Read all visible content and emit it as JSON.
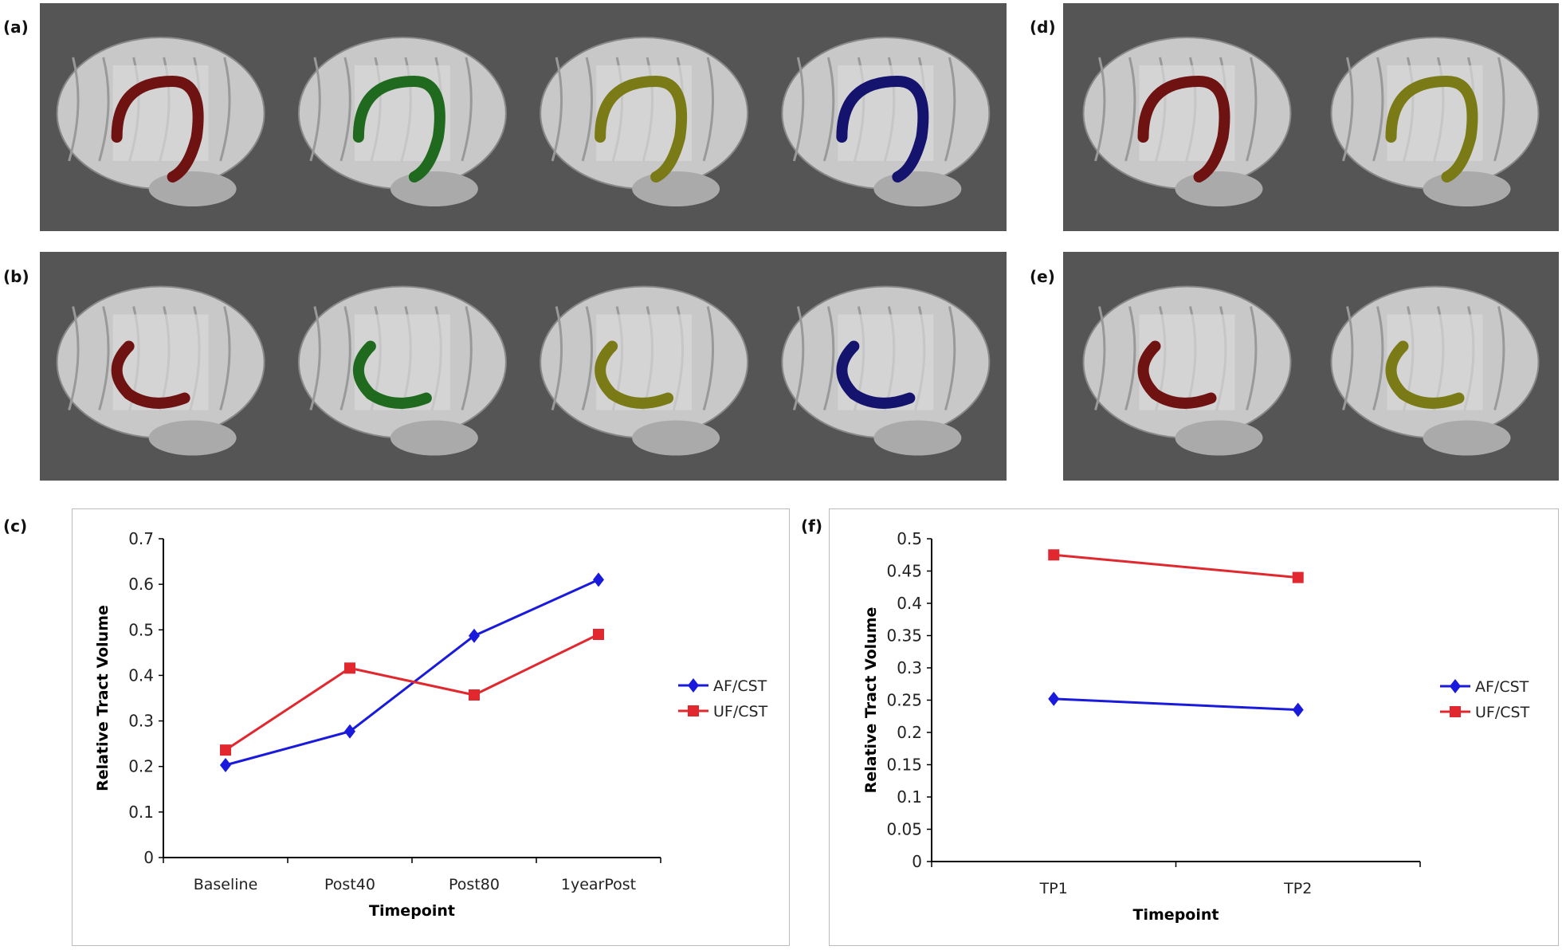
{
  "panel_labels": {
    "a": "(a)",
    "b": "(b)",
    "c": "(c)",
    "d": "(d)",
    "e": "(e)",
    "f": "(f)"
  },
  "colors": {
    "background": "#555555",
    "brain": "#c8c8c8",
    "red_tract": "#6e1212",
    "green_tract": "#1f6a1f",
    "olive_tract": "#7a7a16",
    "blue_tract": "#14146e",
    "af": "#1a1adc",
    "uf": "#e0282e"
  },
  "chart_data": [
    {
      "type": "line",
      "panel": "(c)",
      "categories": [
        "Baseline",
        "Post40",
        "Post80",
        "1yearPost"
      ],
      "series": [
        {
          "name": "AF/CST",
          "marker": "diamond",
          "color": "#1a1adc",
          "values": [
            0.203,
            0.277,
            0.487,
            0.61
          ]
        },
        {
          "name": "UF/CST",
          "marker": "square",
          "color": "#e0282e",
          "values": [
            0.236,
            0.416,
            0.357,
            0.49
          ]
        }
      ],
      "xlabel": "Timepoint",
      "ylabel": "Relative Tract Volume",
      "ylim": [
        0,
        0.7
      ],
      "yticks": [
        "0",
        "0.1",
        "0.2",
        "0.3",
        "0.4",
        "0.5",
        "0.6",
        "0.7"
      ],
      "grid": false,
      "legend": "right"
    },
    {
      "type": "line",
      "panel": "(f)",
      "categories": [
        "TP1",
        "TP2"
      ],
      "series": [
        {
          "name": "AF/CST",
          "marker": "diamond",
          "color": "#1a1adc",
          "values": [
            0.252,
            0.235
          ]
        },
        {
          "name": "UF/CST",
          "marker": "square",
          "color": "#e0282e",
          "values": [
            0.475,
            0.44
          ]
        }
      ],
      "xlabel": "Timepoint",
      "ylabel": "Relative Tract Volume",
      "ylim": [
        0,
        0.5
      ],
      "yticks": [
        "0",
        "0.05",
        "0.1",
        "0.15",
        "0.2",
        "0.25",
        "0.3",
        "0.35",
        "0.4",
        "0.45",
        "0.5"
      ],
      "grid": false,
      "legend": "right"
    }
  ]
}
